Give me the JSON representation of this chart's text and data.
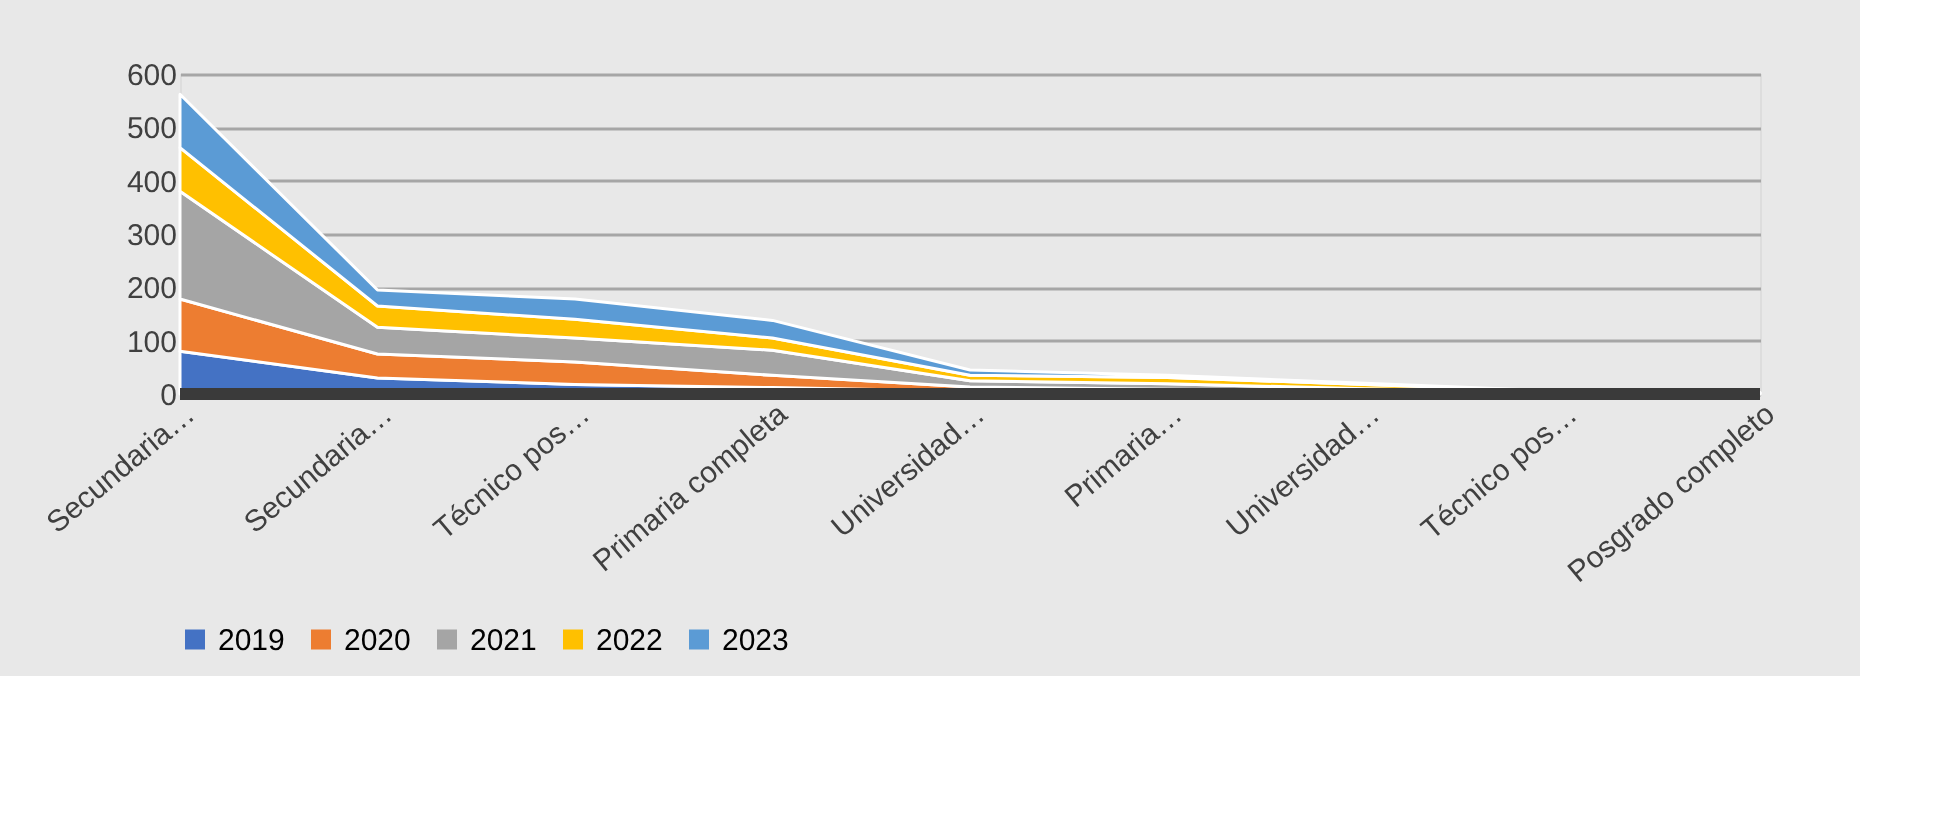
{
  "chart_data": {
    "type": "area",
    "stacked": true,
    "categories": [
      "Secundaria…",
      "Secundaria…",
      "Técnico pos…",
      "Primaria completa",
      "Universidad…",
      "Primaria…",
      "Universidad…",
      "Técnico pos…",
      "Posgrado completo"
    ],
    "series": [
      {
        "name": "2019",
        "color": "#4472c4",
        "values": [
          80,
          30,
          18,
          12,
          5,
          3,
          2,
          1,
          0
        ]
      },
      {
        "name": "2020",
        "color": "#ed7d31",
        "values": [
          98,
          45,
          42,
          23,
          8,
          6,
          3,
          1,
          1
        ]
      },
      {
        "name": "2021",
        "color": "#a5a5a5",
        "values": [
          202,
          50,
          45,
          47,
          12,
          10,
          5,
          1,
          1
        ]
      },
      {
        "name": "2022",
        "color": "#ffc000",
        "values": [
          82,
          40,
          35,
          23,
          10,
          12,
          8,
          2,
          1
        ]
      },
      {
        "name": "2023",
        "color": "#5b9bd5",
        "values": [
          100,
          30,
          38,
          33,
          10,
          4,
          2,
          0,
          0
        ]
      }
    ],
    "ylim": [
      0,
      600
    ],
    "yticks": [
      0,
      100,
      200,
      300,
      400,
      500,
      600
    ],
    "grid": "y",
    "legend": "bottom"
  }
}
